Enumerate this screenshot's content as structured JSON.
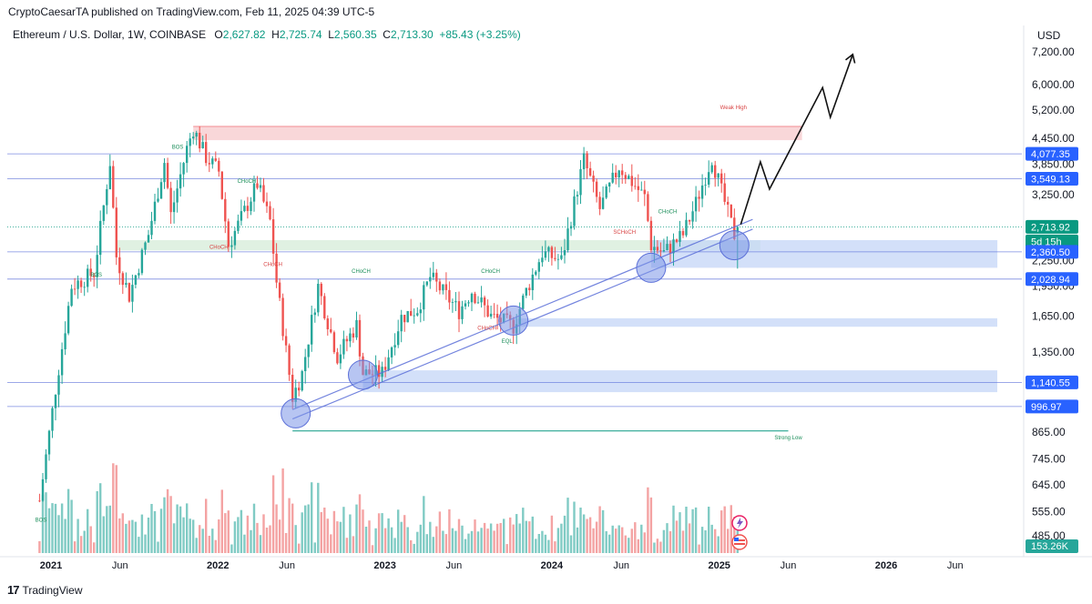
{
  "header": {
    "publisher": "CryptoCaesarTA published on TradingView.com, Feb 11, 2025 04:39 UTC-5"
  },
  "legend": {
    "symbol": "Ethereum / U.S. Dollar, 1W, COINBASE",
    "o_label": "O",
    "o_value": "2,627.82",
    "h_label": "H",
    "h_value": "2,725.74",
    "l_label": "L",
    "l_value": "2,560.35",
    "c_label": "C",
    "c_value": "2,713.30",
    "change": "+85.43 (+3.25%)"
  },
  "footer": {
    "brand": "TradingView"
  },
  "colors": {
    "up": "#26a69a",
    "down": "#ef5350",
    "vol_up": "#80cbc4",
    "vol_down": "#f4a3a3",
    "price_tag_blue": "#2962ff",
    "price_tag_green": "#089981",
    "zone_red": "#f7c9cc",
    "zone_green": "#d6ecd8",
    "zone_blue": "#c4d6f7"
  },
  "chart_data": {
    "type": "candlestick",
    "title": "",
    "price_axis": {
      "currency": "USD",
      "scale": "log",
      "ticks": [
        7200,
        6000,
        5200,
        4450,
        3850,
        3250,
        2750,
        2250,
        1950,
        1650,
        1350,
        1150,
        865,
        745,
        645,
        555,
        485
      ],
      "tick_labels": [
        "7,200.00",
        "6,000.00",
        "5,200.00",
        "4,450.00",
        "3,850.00",
        "3,250.00",
        "2,750.00",
        "2,250.00",
        "1,950.00",
        "1,650.00",
        "1,350.00",
        "1,150.00",
        "865.00",
        "745.00",
        "645.00",
        "555.00",
        "485.00"
      ]
    },
    "time_axis": {
      "labels": [
        {
          "date": "2021-01-01",
          "label": "2021",
          "year": true
        },
        {
          "date": "2021-06-01",
          "label": "Jun",
          "year": false
        },
        {
          "date": "2022-01-01",
          "label": "2022",
          "year": true
        },
        {
          "date": "2022-06-01",
          "label": "Jun",
          "year": false
        },
        {
          "date": "2023-01-01",
          "label": "2023",
          "year": true
        },
        {
          "date": "2023-06-01",
          "label": "Jun",
          "year": false
        },
        {
          "date": "2024-01-01",
          "label": "2024",
          "year": true
        },
        {
          "date": "2024-06-01",
          "label": "Jun",
          "year": false
        },
        {
          "date": "2025-01-01",
          "label": "2025",
          "year": true
        },
        {
          "date": "2025-06-01",
          "label": "Jun",
          "year": false
        },
        {
          "date": "2026-01-01",
          "label": "2026",
          "year": true
        },
        {
          "date": "2026-06-01",
          "label": "Jun",
          "year": false
        }
      ]
    },
    "key_points": [
      {
        "date": "2020-12-07",
        "close": 590
      },
      {
        "date": "2021-01-11",
        "close": 1100
      },
      {
        "date": "2021-02-15",
        "close": 1950
      },
      {
        "date": "2021-04-05",
        "close": 2100
      },
      {
        "date": "2021-05-10",
        "close": 3900
      },
      {
        "date": "2021-05-24",
        "close": 2300
      },
      {
        "date": "2021-06-21",
        "close": 1850
      },
      {
        "date": "2021-08-02",
        "close": 2600
      },
      {
        "date": "2021-09-06",
        "close": 3900
      },
      {
        "date": "2021-09-20",
        "close": 2900
      },
      {
        "date": "2021-10-25",
        "close": 4200
      },
      {
        "date": "2021-11-08",
        "close": 4700
      },
      {
        "date": "2021-12-06",
        "close": 4000
      },
      {
        "date": "2022-01-03",
        "close": 3700
      },
      {
        "date": "2022-01-24",
        "close": 2450
      },
      {
        "date": "2022-03-28",
        "close": 3450
      },
      {
        "date": "2022-04-25",
        "close": 2800
      },
      {
        "date": "2022-05-09",
        "close": 2000
      },
      {
        "date": "2022-06-13",
        "close": 1050
      },
      {
        "date": "2022-07-04",
        "close": 1200
      },
      {
        "date": "2022-08-08",
        "close": 1950
      },
      {
        "date": "2022-09-19",
        "close": 1320
      },
      {
        "date": "2022-10-31",
        "close": 1570
      },
      {
        "date": "2022-11-14",
        "close": 1200
      },
      {
        "date": "2022-12-26",
        "close": 1200
      },
      {
        "date": "2023-02-06",
        "close": 1640
      },
      {
        "date": "2023-03-13",
        "close": 1720
      },
      {
        "date": "2023-04-10",
        "close": 2050
      },
      {
        "date": "2023-06-12",
        "close": 1700
      },
      {
        "date": "2023-07-10",
        "close": 1900
      },
      {
        "date": "2023-08-21",
        "close": 1650
      },
      {
        "date": "2023-10-09",
        "close": 1560
      },
      {
        "date": "2023-11-06",
        "close": 1900
      },
      {
        "date": "2023-12-11",
        "close": 2350
      },
      {
        "date": "2024-01-22",
        "close": 2250
      },
      {
        "date": "2024-03-11",
        "close": 3950
      },
      {
        "date": "2024-04-15",
        "close": 3000
      },
      {
        "date": "2024-05-27",
        "close": 3800
      },
      {
        "date": "2024-07-22",
        "close": 3200
      },
      {
        "date": "2024-08-05",
        "close": 2450
      },
      {
        "date": "2024-09-02",
        "close": 2350
      },
      {
        "date": "2024-10-14",
        "close": 2600
      },
      {
        "date": "2024-11-11",
        "close": 3100
      },
      {
        "date": "2024-12-16",
        "close": 4000
      },
      {
        "date": "2025-01-06",
        "close": 3300
      },
      {
        "date": "2025-02-03",
        "close": 2600
      },
      {
        "date": "2025-02-10",
        "close": 2713.3
      }
    ],
    "volume_label": "153.26K",
    "price_tags": [
      {
        "value": 4077.35,
        "label": "4,077.35",
        "color": "blue"
      },
      {
        "value": 3549.13,
        "label": "3,549.13",
        "color": "blue"
      },
      {
        "value": 2713.92,
        "label": "2,713.92",
        "color": "green"
      },
      {
        "value": 2590,
        "label": "5d 15h",
        "color": "green"
      },
      {
        "value": 2360.5,
        "label": "2,360.50",
        "color": "blue"
      },
      {
        "value": 2028.94,
        "label": "2,028.94",
        "color": "blue"
      },
      {
        "value": 1140.55,
        "label": "1,140.55",
        "color": "blue"
      },
      {
        "value": 996.97,
        "label": "996.97",
        "color": "blue"
      }
    ],
    "zones": [
      {
        "name": "weak-high-zone",
        "from_date": "2021-11-08",
        "to_date": "2025-07-01",
        "high": 4750,
        "low": 4400,
        "color": "red"
      },
      {
        "name": "demand-zone-green",
        "from_date": "2021-05-24",
        "to_date": "2025-04-01",
        "high": 2520,
        "low": 2380,
        "color": "green"
      },
      {
        "name": "demand-zone-blue-1",
        "from_date": "2024-08-05",
        "to_date": "2026-09-01",
        "high": 2520,
        "low": 2160,
        "color": "blue"
      },
      {
        "name": "demand-zone-blue-2",
        "from_date": "2023-10-09",
        "to_date": "2026-09-01",
        "high": 1630,
        "low": 1555,
        "color": "blue"
      },
      {
        "name": "demand-zone-blue-3",
        "from_date": "2022-11-14",
        "to_date": "2026-09-01",
        "high": 1220,
        "low": 1080,
        "color": "blue"
      }
    ],
    "horizontal_lines": [
      4077.35,
      3549.13,
      2360.5,
      2028.94,
      1140.55,
      996.97
    ],
    "trendlines": [
      {
        "from": {
          "date": "2022-06-13",
          "price": 930
        },
        "to": {
          "date": "2025-03-15",
          "price": 2680
        }
      },
      {
        "from": {
          "date": "2022-06-13",
          "price": 980
        },
        "to": {
          "date": "2025-03-15",
          "price": 2830
        }
      }
    ],
    "circles": [
      {
        "date": "2022-06-20",
        "price": 960
      },
      {
        "date": "2022-11-14",
        "price": 1190
      },
      {
        "date": "2023-10-09",
        "price": 1610
      },
      {
        "date": "2024-08-05",
        "price": 2160
      },
      {
        "date": "2025-02-03",
        "price": 2450
      }
    ],
    "projection": [
      {
        "date": "2025-02-17",
        "price": 2750
      },
      {
        "date": "2025-04-01",
        "price": 3900
      },
      {
        "date": "2025-04-21",
        "price": 3350
      },
      {
        "date": "2025-08-15",
        "price": 5900
      },
      {
        "date": "2025-09-01",
        "price": 5000
      },
      {
        "date": "2025-10-20",
        "price": 7100
      }
    ],
    "annotations": [
      {
        "text": "Weak High",
        "date": "2025-02-01",
        "price": 5230,
        "color": "red"
      },
      {
        "text": "Strong Low",
        "date": "2025-06-01",
        "price": 830,
        "color": "green"
      },
      {
        "text": "BOS",
        "date": "2021-10-05",
        "price": 4200,
        "color": "green"
      },
      {
        "text": "BOS",
        "date": "2021-04-10",
        "price": 2060,
        "color": "green"
      },
      {
        "text": "BOS",
        "date": "2020-12-10",
        "price": 525,
        "color": "green"
      },
      {
        "text": "CHoCH",
        "date": "2022-03-05",
        "price": 3470,
        "color": "green"
      },
      {
        "text": "CHoCH",
        "date": "2022-01-03",
        "price": 2400,
        "color": "red"
      },
      {
        "text": "CHoCH",
        "date": "2022-05-01",
        "price": 2180,
        "color": "red"
      },
      {
        "text": "CHoCH",
        "date": "2022-11-10",
        "price": 2100,
        "color": "green"
      },
      {
        "text": "CHoCH",
        "date": "2023-08-20",
        "price": 2100,
        "color": "green"
      },
      {
        "text": "CHoCH",
        "date": "2023-08-12",
        "price": 1530,
        "color": "red"
      },
      {
        "text": "EQL",
        "date": "2023-09-25",
        "price": 1420,
        "color": "green"
      },
      {
        "text": "CHoCH",
        "date": "2024-09-10",
        "price": 2930,
        "color": "green"
      },
      {
        "text": "SCHoCH",
        "date": "2024-06-08",
        "price": 2610,
        "color": "red"
      }
    ]
  }
}
